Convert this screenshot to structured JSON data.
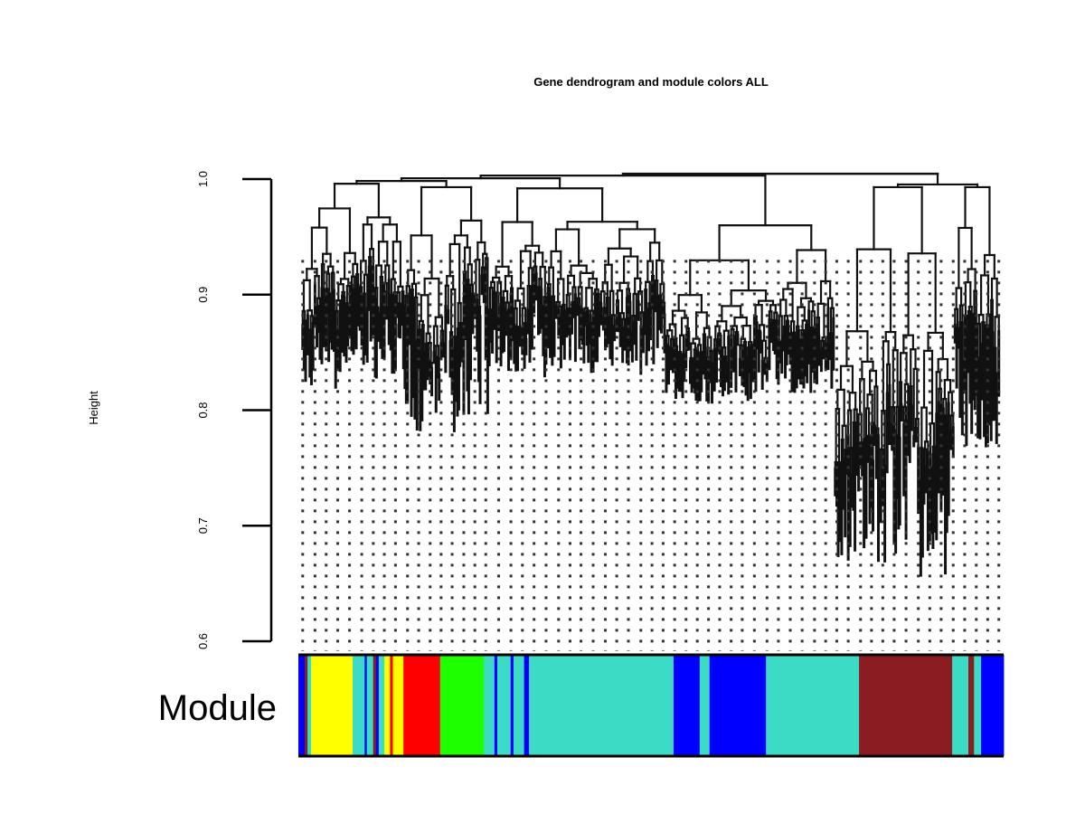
{
  "chart_data": {
    "type": "dendrogram",
    "title": "Gene dendrogram and module colors ALL",
    "ylabel": "Height",
    "ylim": [
      0.6,
      1.0
    ],
    "yticks": [
      {
        "value": 0.6,
        "label": "0.6"
      },
      {
        "value": 0.7,
        "label": "0.7"
      },
      {
        "value": 0.8,
        "label": "0.8"
      },
      {
        "value": 0.9,
        "label": "0.9"
      },
      {
        "value": 1.0,
        "label": "1.0"
      }
    ],
    "color_bar_label": "Module",
    "module_colors": {
      "blue": "#0000FF",
      "brown": "#8B1C22",
      "yellow": "#FFFF00",
      "turquoise": "#3CDBC6",
      "red": "#FF0000",
      "green": "#1EFF00"
    },
    "color_bar": [
      {
        "module": "blue",
        "start": 0.0,
        "end": 0.009
      },
      {
        "module": "brown",
        "start": 0.009,
        "end": 0.013
      },
      {
        "module": "turquoise",
        "start": 0.013,
        "end": 0.018
      },
      {
        "module": "yellow",
        "start": 0.018,
        "end": 0.077
      },
      {
        "module": "turquoise",
        "start": 0.077,
        "end": 0.094
      },
      {
        "module": "blue",
        "start": 0.094,
        "end": 0.097
      },
      {
        "module": "turquoise",
        "start": 0.097,
        "end": 0.106
      },
      {
        "module": "brown",
        "start": 0.106,
        "end": 0.11
      },
      {
        "module": "blue",
        "start": 0.11,
        "end": 0.114
      },
      {
        "module": "turquoise",
        "start": 0.114,
        "end": 0.122
      },
      {
        "module": "yellow",
        "start": 0.122,
        "end": 0.13
      },
      {
        "module": "red",
        "start": 0.13,
        "end": 0.134
      },
      {
        "module": "yellow",
        "start": 0.134,
        "end": 0.149
      },
      {
        "module": "red",
        "start": 0.149,
        "end": 0.201
      },
      {
        "module": "green",
        "start": 0.201,
        "end": 0.263
      },
      {
        "module": "turquoise",
        "start": 0.263,
        "end": 0.278
      },
      {
        "module": "blue",
        "start": 0.278,
        "end": 0.282
      },
      {
        "module": "turquoise",
        "start": 0.282,
        "end": 0.301
      },
      {
        "module": "blue",
        "start": 0.301,
        "end": 0.305
      },
      {
        "module": "turquoise",
        "start": 0.305,
        "end": 0.32
      },
      {
        "module": "blue",
        "start": 0.32,
        "end": 0.327
      },
      {
        "module": "turquoise",
        "start": 0.327,
        "end": 0.532
      },
      {
        "module": "blue",
        "start": 0.532,
        "end": 0.569
      },
      {
        "module": "turquoise",
        "start": 0.569,
        "end": 0.583
      },
      {
        "module": "blue",
        "start": 0.583,
        "end": 0.663
      },
      {
        "module": "turquoise",
        "start": 0.663,
        "end": 0.795
      },
      {
        "module": "brown",
        "start": 0.795,
        "end": 0.927
      },
      {
        "module": "turquoise",
        "start": 0.927,
        "end": 0.95
      },
      {
        "module": "brown",
        "start": 0.95,
        "end": 0.958
      },
      {
        "module": "turquoise",
        "start": 0.958,
        "end": 0.968
      },
      {
        "module": "blue",
        "start": 0.968,
        "end": 1.0
      }
    ],
    "major_branches": [
      {
        "start": 0.0,
        "end": 0.75,
        "merge_height": 0.996
      },
      {
        "start": 0.75,
        "end": 1.0,
        "merge_height": 0.996
      }
    ],
    "cluster_regions": [
      {
        "start": 0.005,
        "end": 0.15,
        "top": 0.996,
        "min_leaf": 0.81
      },
      {
        "start": 0.15,
        "end": 0.27,
        "top": 0.993,
        "min_leaf": 0.76
      },
      {
        "start": 0.27,
        "end": 0.52,
        "top": 0.992,
        "min_leaf": 0.82
      },
      {
        "start": 0.52,
        "end": 0.76,
        "top": 0.96,
        "min_leaf": 0.8
      },
      {
        "start": 0.76,
        "end": 0.93,
        "top": 0.993,
        "min_leaf": 0.63
      },
      {
        "start": 0.93,
        "end": 0.995,
        "top": 0.993,
        "min_leaf": 0.74
      }
    ]
  }
}
